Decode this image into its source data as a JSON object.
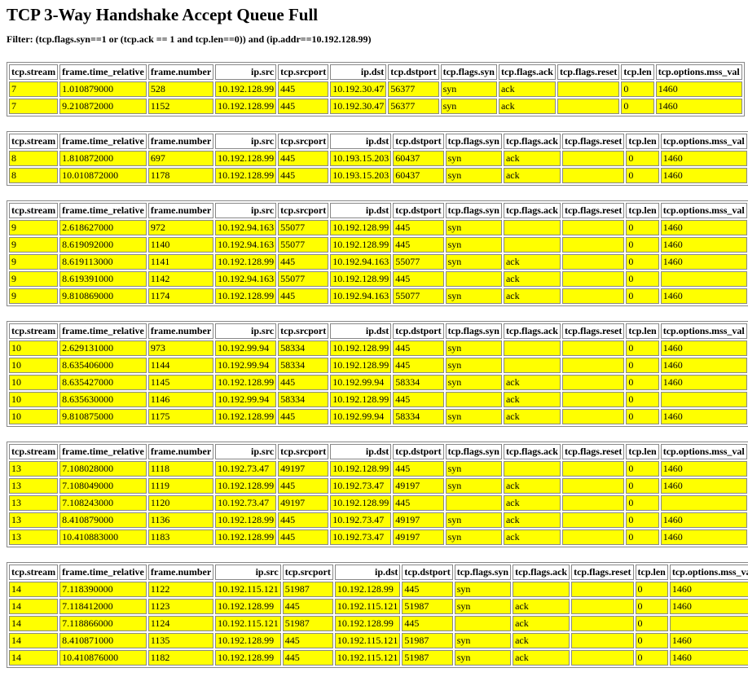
{
  "header": {
    "title": "TCP 3-Way Handshake Accept Queue Full",
    "filter": "Filter: (tcp.flags.syn==1 or (tcp.ack == 1 and tcp.len==0)) and (ip.addr==10.192.128.99)"
  },
  "columns": [
    "tcp.stream",
    "frame.time_relative",
    "frame.number",
    "ip.src",
    "tcp.srcport",
    "ip.dst",
    "tcp.dstport",
    "tcp.flags.syn",
    "tcp.flags.ack",
    "tcp.flags.reset",
    "tcp.len",
    "tcp.options.mss_val"
  ],
  "tables": [
    {
      "rows": [
        [
          "7",
          "1.010879000",
          "528",
          "10.192.128.99",
          "445",
          "10.192.30.47",
          "56377",
          "syn",
          "ack",
          null,
          "0",
          "1460"
        ],
        [
          "7",
          "9.210872000",
          "1152",
          "10.192.128.99",
          "445",
          "10.192.30.47",
          "56377",
          "syn",
          "ack",
          null,
          "0",
          "1460"
        ]
      ]
    },
    {
      "rows": [
        [
          "8",
          "1.810872000",
          "697",
          "10.192.128.99",
          "445",
          "10.193.15.203",
          "60437",
          "syn",
          "ack",
          null,
          "0",
          "1460"
        ],
        [
          "8",
          "10.010872000",
          "1178",
          "10.192.128.99",
          "445",
          "10.193.15.203",
          "60437",
          "syn",
          "ack",
          null,
          "0",
          "1460"
        ]
      ]
    },
    {
      "rows": [
        [
          "9",
          "2.618627000",
          "972",
          "10.192.94.163",
          "55077",
          "10.192.128.99",
          "445",
          "syn",
          null,
          null,
          "0",
          "1460"
        ],
        [
          "9",
          "8.619092000",
          "1140",
          "10.192.94.163",
          "55077",
          "10.192.128.99",
          "445",
          "syn",
          null,
          null,
          "0",
          "1460"
        ],
        [
          "9",
          "8.619113000",
          "1141",
          "10.192.128.99",
          "445",
          "10.192.94.163",
          "55077",
          "syn",
          "ack",
          null,
          "0",
          "1460"
        ],
        [
          "9",
          "8.619391000",
          "1142",
          "10.192.94.163",
          "55077",
          "10.192.128.99",
          "445",
          null,
          "ack",
          null,
          "0",
          null
        ],
        [
          "9",
          "9.810869000",
          "1174",
          "10.192.128.99",
          "445",
          "10.192.94.163",
          "55077",
          "syn",
          "ack",
          null,
          "0",
          "1460"
        ]
      ]
    },
    {
      "rows": [
        [
          "10",
          "2.629131000",
          "973",
          "10.192.99.94",
          "58334",
          "10.192.128.99",
          "445",
          "syn",
          null,
          null,
          "0",
          "1460"
        ],
        [
          "10",
          "8.635406000",
          "1144",
          "10.192.99.94",
          "58334",
          "10.192.128.99",
          "445",
          "syn",
          null,
          null,
          "0",
          "1460"
        ],
        [
          "10",
          "8.635427000",
          "1145",
          "10.192.128.99",
          "445",
          "10.192.99.94",
          "58334",
          "syn",
          "ack",
          null,
          "0",
          "1460"
        ],
        [
          "10",
          "8.635630000",
          "1146",
          "10.192.99.94",
          "58334",
          "10.192.128.99",
          "445",
          null,
          "ack",
          null,
          "0",
          null
        ],
        [
          "10",
          "9.810875000",
          "1175",
          "10.192.128.99",
          "445",
          "10.192.99.94",
          "58334",
          "syn",
          "ack",
          null,
          "0",
          "1460"
        ]
      ]
    },
    {
      "rows": [
        [
          "13",
          "7.108028000",
          "1118",
          "10.192.73.47",
          "49197",
          "10.192.128.99",
          "445",
          "syn",
          null,
          null,
          "0",
          "1460"
        ],
        [
          "13",
          "7.108049000",
          "1119",
          "10.192.128.99",
          "445",
          "10.192.73.47",
          "49197",
          "syn",
          "ack",
          null,
          "0",
          "1460"
        ],
        [
          "13",
          "7.108243000",
          "1120",
          "10.192.73.47",
          "49197",
          "10.192.128.99",
          "445",
          null,
          "ack",
          null,
          "0",
          null
        ],
        [
          "13",
          "8.410879000",
          "1136",
          "10.192.128.99",
          "445",
          "10.192.73.47",
          "49197",
          "syn",
          "ack",
          null,
          "0",
          "1460"
        ],
        [
          "13",
          "10.410883000",
          "1183",
          "10.192.128.99",
          "445",
          "10.192.73.47",
          "49197",
          "syn",
          "ack",
          null,
          "0",
          "1460"
        ]
      ]
    },
    {
      "rows": [
        [
          "14",
          "7.118390000",
          "1122",
          "10.192.115.121",
          "51987",
          "10.192.128.99",
          "445",
          "syn",
          null,
          null,
          "0",
          "1460"
        ],
        [
          "14",
          "7.118412000",
          "1123",
          "10.192.128.99",
          "445",
          "10.192.115.121",
          "51987",
          "syn",
          "ack",
          null,
          "0",
          "1460"
        ],
        [
          "14",
          "7.118866000",
          "1124",
          "10.192.115.121",
          "51987",
          "10.192.128.99",
          "445",
          null,
          "ack",
          null,
          "0",
          null
        ],
        [
          "14",
          "8.410871000",
          "1135",
          "10.192.128.99",
          "445",
          "10.192.115.121",
          "51987",
          "syn",
          "ack",
          null,
          "0",
          "1460"
        ],
        [
          "14",
          "10.410876000",
          "1182",
          "10.192.128.99",
          "445",
          "10.192.115.121",
          "51987",
          "syn",
          "ack",
          null,
          "0",
          "1460"
        ]
      ]
    }
  ]
}
